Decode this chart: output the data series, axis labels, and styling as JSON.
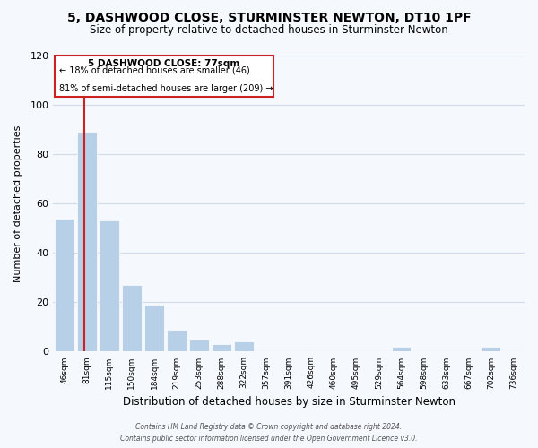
{
  "title": "5, DASHWOOD CLOSE, STURMINSTER NEWTON, DT10 1PF",
  "subtitle": "Size of property relative to detached houses in Sturminster Newton",
  "xlabel": "Distribution of detached houses by size in Sturminster Newton",
  "ylabel": "Number of detached properties",
  "bar_labels": [
    "46sqm",
    "81sqm",
    "115sqm",
    "150sqm",
    "184sqm",
    "219sqm",
    "253sqm",
    "288sqm",
    "322sqm",
    "357sqm",
    "391sqm",
    "426sqm",
    "460sqm",
    "495sqm",
    "529sqm",
    "564sqm",
    "598sqm",
    "633sqm",
    "667sqm",
    "702sqm",
    "736sqm"
  ],
  "bar_values": [
    54,
    89,
    53,
    27,
    19,
    9,
    5,
    3,
    4,
    0,
    0,
    0,
    0,
    0,
    0,
    2,
    0,
    0,
    0,
    2,
    0
  ],
  "bar_color": "#b8cfe8",
  "grid_color": "#d0dcea",
  "background_color": "#f5f8fc",
  "ylim": [
    0,
    120
  ],
  "yticks": [
    0,
    20,
    40,
    60,
    80,
    100,
    120
  ],
  "red_line_index": 0.9,
  "annotation_title": "5 DASHWOOD CLOSE: 77sqm",
  "annotation_line1": "← 18% of detached houses are smaller (46)",
  "annotation_line2": "81% of semi-detached houses are larger (209) →",
  "annotation_box_color": "#ffffff",
  "annotation_box_edge": "#cc2222",
  "red_line_color": "#cc2222",
  "footer1": "Contains HM Land Registry data © Crown copyright and database right 2024.",
  "footer2": "Contains public sector information licensed under the Open Government Licence v3.0."
}
